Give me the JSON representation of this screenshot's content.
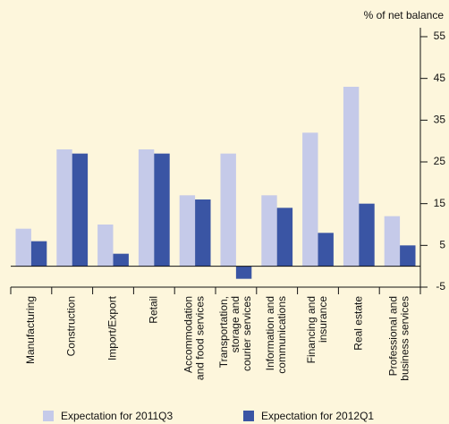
{
  "chart_data": {
    "type": "bar",
    "y_label": "% of net balance",
    "categories": [
      "Manufacturing",
      "Construction",
      "Import/Export",
      "Retail",
      "Accommodation\nand food services",
      "Transportation,\nstorage and\ncourier services",
      "Information and\ncommunications",
      "Financing and\ninsurance",
      "Real estate",
      "Professional and\nbusiness services"
    ],
    "series": [
      {
        "name": "Expectation for 2011Q3",
        "color": "#c5cae9",
        "values": [
          9,
          28,
          10,
          28,
          17,
          27,
          17,
          32,
          43,
          12
        ]
      },
      {
        "name": "Expectation for 2012Q1",
        "color": "#3a55a4",
        "values": [
          6,
          27,
          3,
          27,
          16,
          -3,
          14,
          8,
          15,
          5
        ]
      }
    ],
    "ylim": [
      -5,
      55
    ],
    "yticks": [
      -5,
      5,
      15,
      25,
      35,
      45,
      55
    ]
  }
}
